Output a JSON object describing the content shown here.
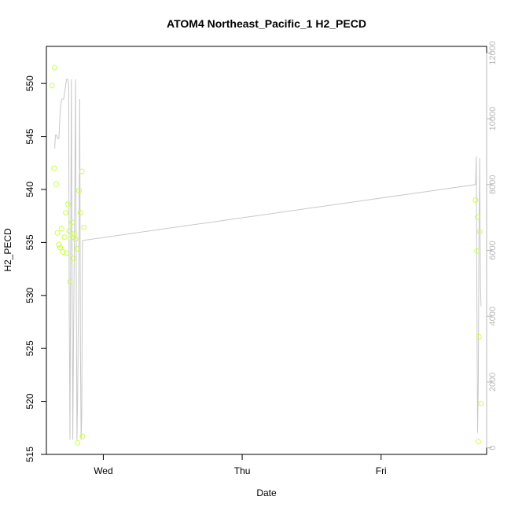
{
  "chart_data": {
    "type": "scatter",
    "title": "ATOM4 Northeast_Pacific_1 H2_PECD",
    "xlabel": "Date",
    "ylabel": "H2_PECD",
    "x_ticks": [
      "Wed",
      "Thu",
      "Fri"
    ],
    "xlim": [
      -0.41,
      2.76
    ],
    "ylim": [
      515.0,
      553.5
    ],
    "y_ticks": [
      515,
      520,
      525,
      530,
      535,
      540,
      545,
      550
    ],
    "y2lim": [
      -200,
      12200
    ],
    "y2_ticks": [
      0,
      2000,
      4000,
      6000,
      8000,
      10000,
      12000
    ],
    "grid": false,
    "points_color": "#ccff44",
    "line_color": "#c8c8c8",
    "right_axis_color": "#b8b8b8",
    "series": [
      {
        "kind": "points",
        "axis": "left",
        "points": [
          {
            "x": -0.37,
            "y": 549.8
          },
          {
            "x": -0.35,
            "y": 551.5
          },
          {
            "x": -0.355,
            "y": 542.0
          },
          {
            "x": -0.34,
            "y": 540.5
          },
          {
            "x": -0.33,
            "y": 535.9
          },
          {
            "x": -0.32,
            "y": 534.8
          },
          {
            "x": -0.31,
            "y": 534.5
          },
          {
            "x": -0.3,
            "y": 536.3
          },
          {
            "x": -0.29,
            "y": 534.1
          },
          {
            "x": -0.28,
            "y": 535.5
          },
          {
            "x": -0.27,
            "y": 537.8
          },
          {
            "x": -0.265,
            "y": 534.0
          },
          {
            "x": -0.255,
            "y": 538.6
          },
          {
            "x": -0.245,
            "y": 536.1
          },
          {
            "x": -0.24,
            "y": 531.3
          },
          {
            "x": -0.225,
            "y": 536.9
          },
          {
            "x": -0.22,
            "y": 535.5
          },
          {
            "x": -0.215,
            "y": 533.5
          },
          {
            "x": -0.21,
            "y": 535.8
          },
          {
            "x": -0.2,
            "y": 535.3
          },
          {
            "x": -0.19,
            "y": 534.4
          },
          {
            "x": -0.185,
            "y": 516.1
          },
          {
            "x": -0.175,
            "y": 539.9
          },
          {
            "x": -0.165,
            "y": 537.8
          },
          {
            "x": -0.155,
            "y": 541.7
          },
          {
            "x": -0.15,
            "y": 516.7
          },
          {
            "x": -0.14,
            "y": 536.4
          },
          {
            "x": 2.68,
            "y": 539.0
          },
          {
            "x": 2.69,
            "y": 534.2
          },
          {
            "x": 2.695,
            "y": 537.4
          },
          {
            "x": 2.7,
            "y": 516.2
          },
          {
            "x": 2.705,
            "y": 526.1
          },
          {
            "x": 2.71,
            "y": 536.0
          },
          {
            "x": 2.72,
            "y": 519.8
          }
        ]
      },
      {
        "kind": "line",
        "axis": "right",
        "points": [
          {
            "x": -0.35,
            "y": 9100
          },
          {
            "x": -0.345,
            "y": 9500
          },
          {
            "x": -0.335,
            "y": 9500
          },
          {
            "x": -0.33,
            "y": 9400
          },
          {
            "x": -0.32,
            "y": 9400
          },
          {
            "x": -0.31,
            "y": 10300
          },
          {
            "x": -0.3,
            "y": 10600
          },
          {
            "x": -0.285,
            "y": 10600
          },
          {
            "x": -0.275,
            "y": 10900
          },
          {
            "x": -0.265,
            "y": 11200
          },
          {
            "x": -0.255,
            "y": 11200
          },
          {
            "x": -0.25,
            "y": 11000
          },
          {
            "x": -0.245,
            "y": 4000
          },
          {
            "x": -0.24,
            "y": 250
          },
          {
            "x": -0.235,
            "y": 6000
          },
          {
            "x": -0.23,
            "y": 11200
          },
          {
            "x": -0.225,
            "y": 5500
          },
          {
            "x": -0.22,
            "y": 250
          },
          {
            "x": -0.215,
            "y": 3000
          },
          {
            "x": -0.205,
            "y": 8000
          },
          {
            "x": -0.2,
            "y": 11200
          },
          {
            "x": -0.195,
            "y": 5000
          },
          {
            "x": -0.19,
            "y": 250
          },
          {
            "x": -0.185,
            "y": 1500
          },
          {
            "x": -0.175,
            "y": 6000
          },
          {
            "x": -0.17,
            "y": 10600
          },
          {
            "x": -0.165,
            "y": 3000
          },
          {
            "x": -0.16,
            "y": 250
          },
          {
            "x": -0.155,
            "y": 1000
          },
          {
            "x": -0.15,
            "y": 6300
          },
          {
            "x": 2.68,
            "y": 8000
          },
          {
            "x": 2.685,
            "y": 8850
          },
          {
            "x": 2.69,
            "y": 4500
          },
          {
            "x": 2.695,
            "y": 450
          },
          {
            "x": 2.7,
            "y": 2000
          },
          {
            "x": 2.705,
            "y": 6500
          },
          {
            "x": 2.71,
            "y": 8800
          },
          {
            "x": 2.715,
            "y": 5000
          },
          {
            "x": 2.72,
            "y": 4300
          }
        ]
      }
    ]
  }
}
